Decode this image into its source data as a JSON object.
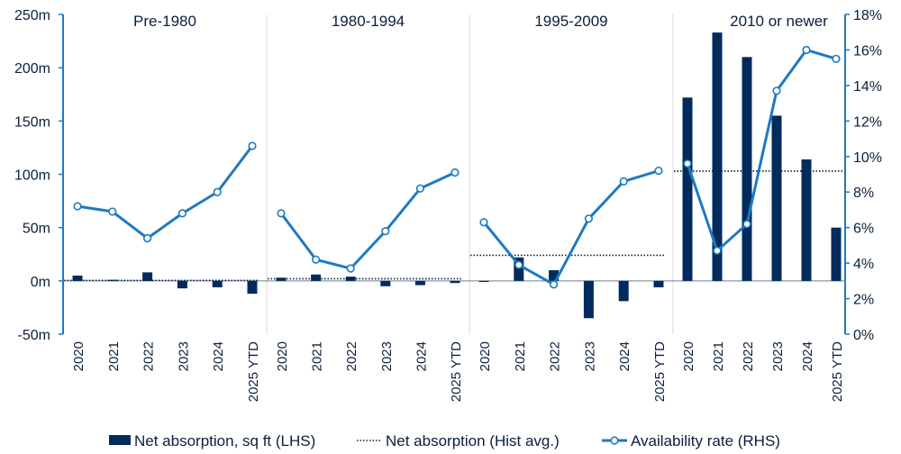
{
  "chart_data": {
    "type": "bar",
    "panels": [
      {
        "title": "Pre-1980",
        "categories": [
          "2020",
          "2021",
          "2022",
          "2023",
          "2024",
          "2025 YTD"
        ],
        "net_absorption": [
          5,
          1,
          8,
          -7,
          -6,
          -12
        ],
        "hist_avg": 0.5,
        "availability_rate": [
          7.2,
          6.9,
          5.4,
          6.8,
          8.0,
          10.6
        ]
      },
      {
        "title": "1980-1994",
        "categories": [
          "2020",
          "2021",
          "2022",
          "2023",
          "2024",
          "2025 YTD"
        ],
        "net_absorption": [
          3,
          6,
          4,
          -5,
          -4,
          -2
        ],
        "hist_avg": 2,
        "availability_rate": [
          6.8,
          4.2,
          3.7,
          5.8,
          8.2,
          9.1
        ]
      },
      {
        "title": "1995-2009",
        "categories": [
          "2020",
          "2021",
          "2022",
          "2023",
          "2024",
          "2025 YTD"
        ],
        "net_absorption": [
          -1,
          22,
          10,
          -35,
          -19,
          -6
        ],
        "hist_avg": 24,
        "availability_rate": [
          6.3,
          3.9,
          2.8,
          6.5,
          8.6,
          9.2
        ]
      },
      {
        "title": "2010 or newer",
        "categories": [
          "2020",
          "2021",
          "2022",
          "2023",
          "2024",
          "2025 YTD"
        ],
        "net_absorption": [
          172,
          233,
          210,
          155,
          114,
          50
        ],
        "hist_avg": 103,
        "availability_rate": [
          9.6,
          4.7,
          6.2,
          13.7,
          16.0,
          15.5
        ]
      }
    ],
    "left_axis": {
      "min": -50,
      "max": 250,
      "ticks": [
        -50,
        0,
        50,
        100,
        150,
        200,
        250
      ],
      "tick_labels": [
        "-50m",
        "0m",
        "50m",
        "100m",
        "150m",
        "200m",
        "250m"
      ]
    },
    "right_axis": {
      "min": 0,
      "max": 18,
      "ticks": [
        0,
        2,
        4,
        6,
        8,
        10,
        12,
        14,
        16,
        18
      ],
      "tick_labels": [
        "0%",
        "2%",
        "4%",
        "6%",
        "8%",
        "10%",
        "12%",
        "14%",
        "16%",
        "18%"
      ]
    },
    "legend": [
      {
        "label": "Net absorption, sq ft (LHS)",
        "kind": "bar"
      },
      {
        "label": "Net absorption (Hist avg.)",
        "kind": "dotted"
      },
      {
        "label": "Availability rate (RHS)",
        "kind": "line-marker"
      }
    ],
    "legend_placement": "bottom",
    "colors": {
      "bar": "#002b5c",
      "line": "#1e7ac2",
      "marker_fill": "#ffffff",
      "axis": "#1e7ac2",
      "text": "#0b1f3a",
      "divider": "#d9d9d9",
      "hist_avg": "#0b1f3a"
    }
  }
}
